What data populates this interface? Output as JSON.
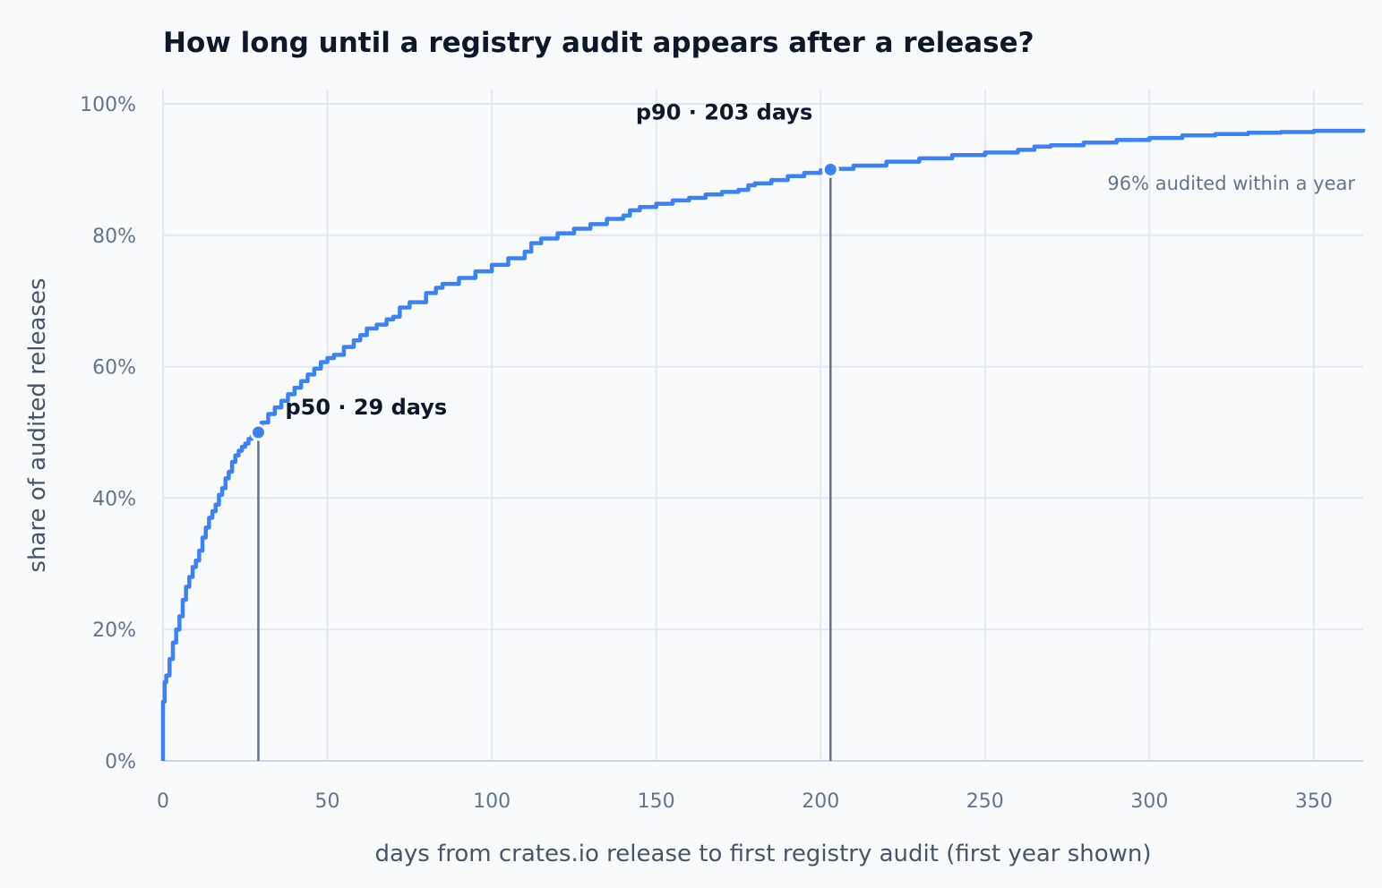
{
  "chart_data": {
    "type": "line",
    "title": "How long until a registry audit appears after a release?",
    "xlabel": "days from crates.io release to first registry audit (first year shown)",
    "ylabel": "share of audited releases",
    "xlim": [
      0,
      365
    ],
    "ylim": [
      0,
      1.0
    ],
    "x_ticks": [
      0,
      50,
      100,
      150,
      200,
      250,
      300,
      350
    ],
    "y_ticks": [
      0,
      0.2,
      0.4,
      0.6,
      0.8,
      1.0
    ],
    "x_tick_labels": [
      "0",
      "50",
      "100",
      "150",
      "200",
      "250",
      "300",
      "350"
    ],
    "y_tick_labels": [
      "0%",
      "20%",
      "40%",
      "60%",
      "80%",
      "100%"
    ],
    "grid": true,
    "step": true,
    "series": [
      {
        "color": "#3b82f6",
        "x": [
          0,
          0.5,
          1,
          2,
          3,
          4,
          5,
          6,
          7,
          8,
          9,
          10,
          11,
          12,
          13,
          14,
          15,
          16,
          17,
          18,
          19,
          20,
          21,
          22,
          23,
          24,
          25,
          26,
          27,
          28,
          29,
          30,
          32,
          34,
          36,
          38,
          40,
          42,
          44,
          46,
          48,
          50,
          52,
          55,
          58,
          60,
          62,
          65,
          68,
          70,
          72,
          75,
          80,
          83,
          85,
          90,
          95,
          100,
          105,
          110,
          112,
          115,
          120,
          125,
          130,
          135,
          140,
          142,
          145,
          150,
          155,
          160,
          165,
          170,
          175,
          178,
          180,
          185,
          190,
          195,
          200,
          203,
          210,
          220,
          230,
          240,
          250,
          260,
          265,
          270,
          280,
          290,
          300,
          310,
          320,
          330,
          340,
          350,
          365
        ],
        "y": [
          0.09,
          0.12,
          0.13,
          0.155,
          0.18,
          0.2,
          0.22,
          0.245,
          0.265,
          0.28,
          0.295,
          0.305,
          0.32,
          0.34,
          0.355,
          0.37,
          0.38,
          0.39,
          0.405,
          0.415,
          0.43,
          0.44,
          0.455,
          0.465,
          0.472,
          0.478,
          0.483,
          0.49,
          0.495,
          0.5,
          0.5,
          0.515,
          0.528,
          0.538,
          0.548,
          0.558,
          0.568,
          0.578,
          0.588,
          0.597,
          0.607,
          0.613,
          0.618,
          0.63,
          0.64,
          0.648,
          0.658,
          0.664,
          0.672,
          0.676,
          0.69,
          0.698,
          0.712,
          0.72,
          0.726,
          0.735,
          0.745,
          0.755,
          0.765,
          0.775,
          0.788,
          0.795,
          0.803,
          0.81,
          0.817,
          0.825,
          0.83,
          0.838,
          0.843,
          0.848,
          0.853,
          0.857,
          0.862,
          0.866,
          0.869,
          0.876,
          0.879,
          0.884,
          0.89,
          0.895,
          0.899,
          0.901,
          0.906,
          0.912,
          0.917,
          0.922,
          0.926,
          0.93,
          0.935,
          0.937,
          0.941,
          0.945,
          0.948,
          0.952,
          0.954,
          0.956,
          0.957,
          0.959,
          0.962
        ]
      }
    ],
    "markers": [
      {
        "x": 29,
        "y": 0.5,
        "label": "p50 · 29 days"
      },
      {
        "x": 203,
        "y": 0.9,
        "label": "p90 · 203 days"
      }
    ],
    "annotation": "96% audited within a year"
  }
}
